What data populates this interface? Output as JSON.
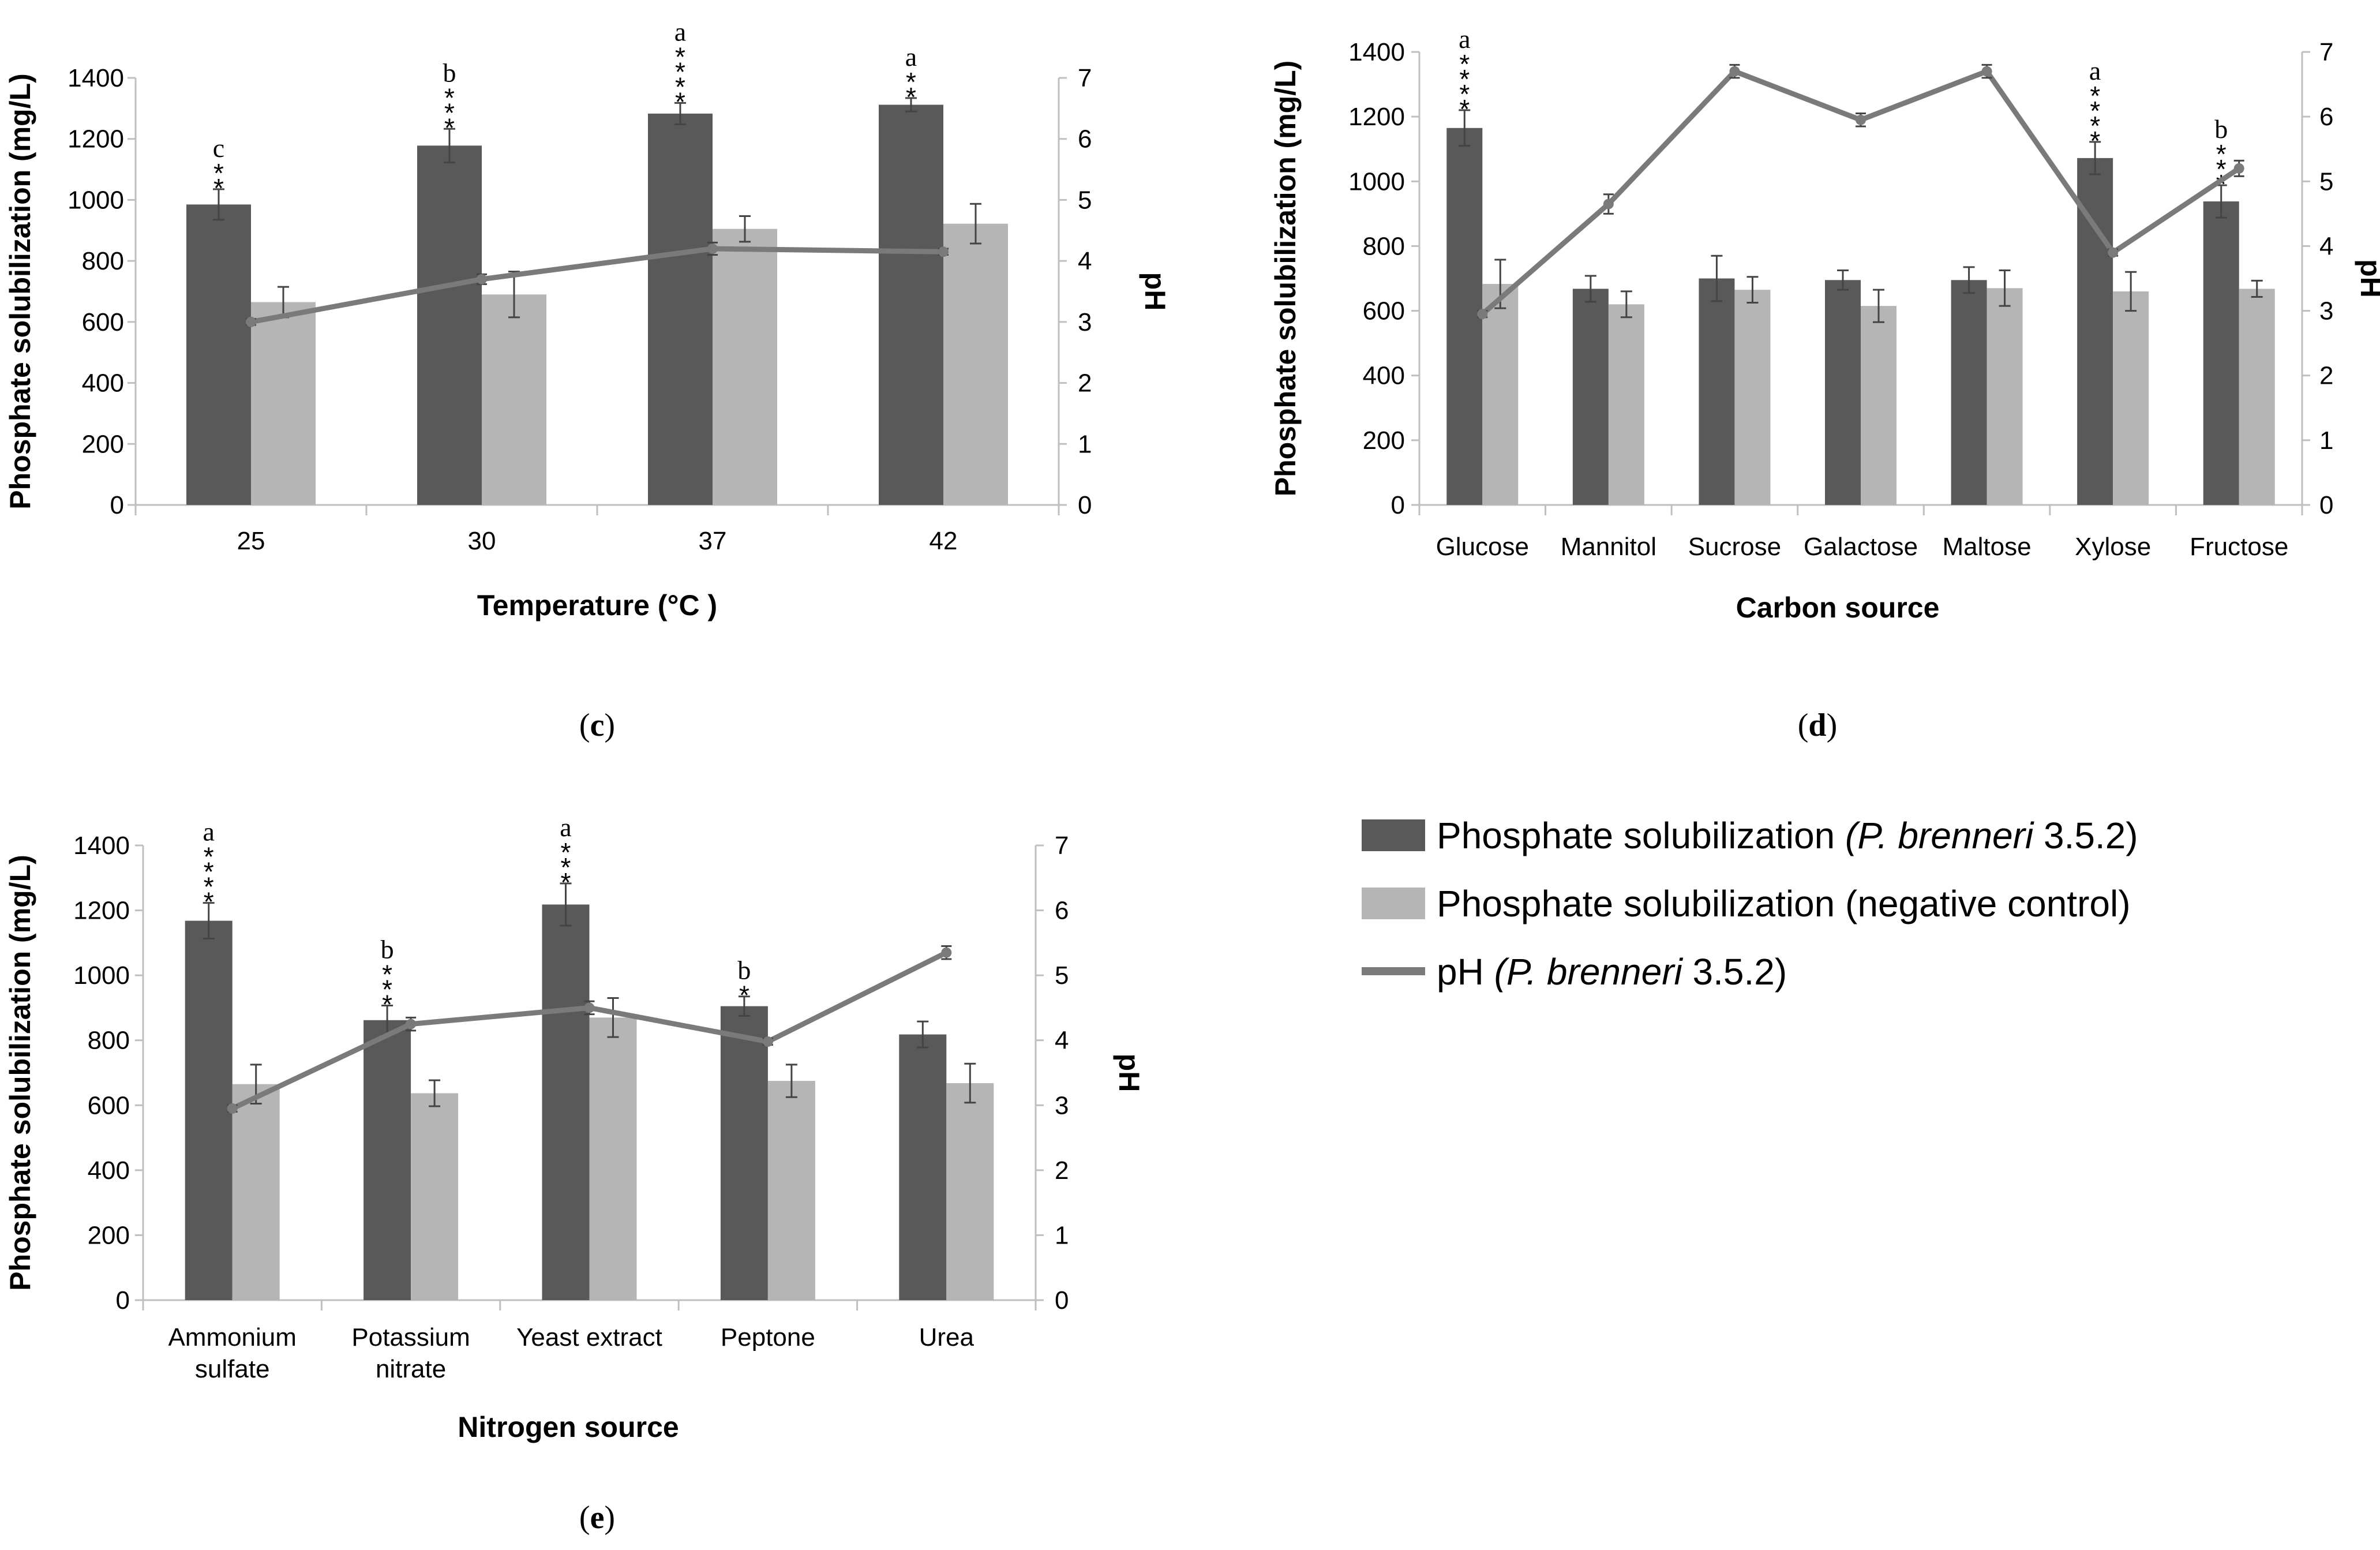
{
  "colors": {
    "bacteria": "#595959",
    "control": "#b5b5b5",
    "ph_line": "#7a7a7a"
  },
  "legend": {
    "item1_prefix": "Phosphate solubilization ",
    "item1_species": "(P. brenneri",
    "item1_suffix": " 3.5.2)",
    "item2": "Phosphate solubilization (negative control)",
    "item3_prefix": "pH ",
    "item3_species": "(P. brenneri",
    "item3_suffix": " 3.5.2)"
  },
  "chart_data": [
    {
      "panel": "(c)",
      "panel_letter": "c",
      "type": "bar",
      "xlabel": "Temperature (°C )",
      "ylabel": "Phosphate solubilization (mg/L)",
      "y2label": "pH",
      "ylim": [
        0,
        1400
      ],
      "y2lim": [
        0,
        7
      ],
      "yticks": [
        "0",
        "200",
        "400",
        "600",
        "800",
        "1000",
        "1200",
        "1400"
      ],
      "y2ticks": [
        "0",
        "1",
        "2",
        "3",
        "4",
        "5",
        "6",
        "7"
      ],
      "categories": [
        [
          "25"
        ],
        [
          "30"
        ],
        [
          "37"
        ],
        [
          "42"
        ]
      ],
      "series": [
        {
          "name": "Phosphate solubilization (P. brenneri 3.5.2)",
          "values": [
            985,
            1178,
            1283,
            1312
          ],
          "errors": [
            50,
            55,
            35,
            22
          ]
        },
        {
          "name": "Phosphate solubilization (negative control)",
          "values": [
            665,
            690,
            905,
            922
          ],
          "errors": [
            50,
            75,
            42,
            65
          ]
        },
        {
          "name": "pH (P. brenneri 3.5.2)",
          "values": [
            3.0,
            3.7,
            4.2,
            4.15
          ],
          "errors": [
            0.05,
            0.08,
            0.1,
            0.05
          ]
        }
      ],
      "letters": [
        "c",
        "b",
        "a",
        "a"
      ],
      "stars": [
        "**",
        "***",
        "****",
        "**"
      ]
    },
    {
      "panel": "(d)",
      "panel_letter": "d",
      "type": "bar",
      "xlabel": "Carbon source",
      "ylabel": "Phosphate  solubilization (mg/L)",
      "y2label": "pH",
      "ylim": [
        0,
        1400
      ],
      "y2lim": [
        0,
        7
      ],
      "yticks": [
        "0",
        "200",
        "400",
        "600",
        "800",
        "1000",
        "1200",
        "1400"
      ],
      "y2ticks": [
        "0",
        "1",
        "2",
        "3",
        "4",
        "5",
        "6",
        "7"
      ],
      "categories": [
        [
          "Glucose"
        ],
        [
          "Mannitol"
        ],
        [
          "Sucrose"
        ],
        [
          "Galactose"
        ],
        [
          "Maltose"
        ],
        [
          "Xylose"
        ],
        [
          "Fructose"
        ]
      ],
      "series": [
        {
          "name": "Phosphate solubilization (P. brenneri 3.5.2)",
          "values": [
            1165,
            668,
            700,
            695,
            695,
            1072,
            938
          ],
          "errors": [
            55,
            40,
            70,
            30,
            40,
            50,
            50
          ]
        },
        {
          "name": "Phosphate solubilization (negative control)",
          "values": [
            683,
            620,
            665,
            615,
            670,
            660,
            668
          ],
          "errors": [
            75,
            40,
            40,
            50,
            55,
            60,
            25
          ]
        },
        {
          "name": "pH (P. brenneri 3.5.2)",
          "values": [
            2.95,
            4.65,
            6.7,
            5.95,
            6.7,
            3.9,
            5.2
          ],
          "errors": [
            0.05,
            0.15,
            0.1,
            0.1,
            0.1,
            0.05,
            0.12
          ]
        }
      ],
      "letters": [
        "a",
        "",
        "",
        "",
        "",
        "a",
        "b"
      ],
      "stars": [
        "****",
        "",
        "",
        "",
        "",
        "****",
        "***"
      ]
    },
    {
      "panel": "(e)",
      "panel_letter": "e",
      "type": "bar",
      "xlabel": "Nitrogen source",
      "ylabel": "Phosphate  solubilization (mg/L)",
      "y2label": "pH",
      "ylim": [
        0,
        1400
      ],
      "y2lim": [
        0,
        7
      ],
      "yticks": [
        "0",
        "200",
        "400",
        "600",
        "800",
        "1000",
        "1200",
        "1400"
      ],
      "y2ticks": [
        "0",
        "1",
        "2",
        "3",
        "4",
        "5",
        "6",
        "7"
      ],
      "categories": [
        [
          "Ammonium",
          "sulfate"
        ],
        [
          "Potassium",
          "nitrate"
        ],
        [
          "Yeast extract"
        ],
        [
          "Peptone"
        ],
        [
          "Urea"
        ]
      ],
      "series": [
        {
          "name": "Phosphate solubilization (P. brenneri 3.5.2)",
          "values": [
            1168,
            862,
            1218,
            905,
            818
          ],
          "errors": [
            55,
            45,
            65,
            30,
            40
          ]
        },
        {
          "name": "Phosphate solubilization (negative control)",
          "values": [
            665,
            637,
            870,
            675,
            668
          ],
          "errors": [
            60,
            40,
            60,
            50,
            60
          ]
        },
        {
          "name": "pH (P. brenneri 3.5.2)",
          "values": [
            2.95,
            4.25,
            4.5,
            3.98,
            5.35
          ],
          "errors": [
            0.05,
            0.1,
            0.1,
            0.05,
            0.1
          ]
        }
      ],
      "letters": [
        "a",
        "b",
        "a",
        "b",
        ""
      ],
      "stars": [
        "****",
        "***",
        "***",
        "*",
        ""
      ]
    }
  ]
}
